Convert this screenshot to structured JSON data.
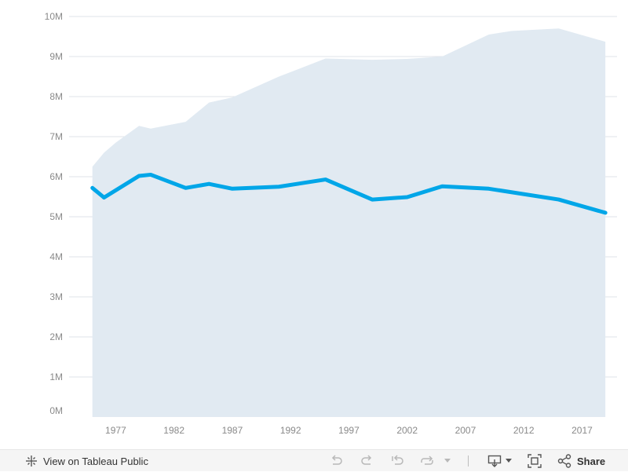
{
  "chart_data": {
    "type": "line",
    "x_ticks": [
      1977,
      1982,
      1987,
      1992,
      1997,
      2002,
      2007,
      2012,
      2017
    ],
    "xlim": [
      1973,
      2020
    ],
    "y_ticks": [
      "0M",
      "1M",
      "2M",
      "3M",
      "4M",
      "5M",
      "6M",
      "7M",
      "8M",
      "9M",
      "10M"
    ],
    "ylim": [
      0,
      10000000
    ],
    "grid": true,
    "series": [
      {
        "kind": "area",
        "color": "#e1eaf2",
        "x": [
          1975,
          1976,
          1977,
          1979,
          1980,
          1983,
          1985,
          1987,
          1991,
          1995,
          1999,
          2002,
          2005,
          2009,
          2011,
          2015,
          2019
        ],
        "values": [
          6250000,
          6600000,
          6850000,
          7270000,
          7200000,
          7370000,
          7850000,
          7980000,
          8500000,
          8950000,
          8920000,
          8940000,
          9000000,
          9550000,
          9640000,
          9700000,
          9370000
        ]
      },
      {
        "kind": "line",
        "color": "#00a6e8",
        "x": [
          1975,
          1976,
          1979,
          1980,
          1983,
          1985,
          1987,
          1991,
          1995,
          1999,
          2002,
          2005,
          2009,
          2015,
          2019
        ],
        "values": [
          5720000,
          5480000,
          6020000,
          6050000,
          5720000,
          5820000,
          5700000,
          5750000,
          5930000,
          5430000,
          5490000,
          5760000,
          5700000,
          5430000,
          5100000
        ]
      }
    ]
  },
  "toolbar": {
    "view_label": "View on Tableau Public",
    "share_label": "Share",
    "icons": [
      "tableau-icon",
      "undo-icon",
      "redo-icon",
      "revert-icon",
      "refresh-icon",
      "download-icon",
      "fullscreen-icon",
      "share-icon"
    ]
  }
}
